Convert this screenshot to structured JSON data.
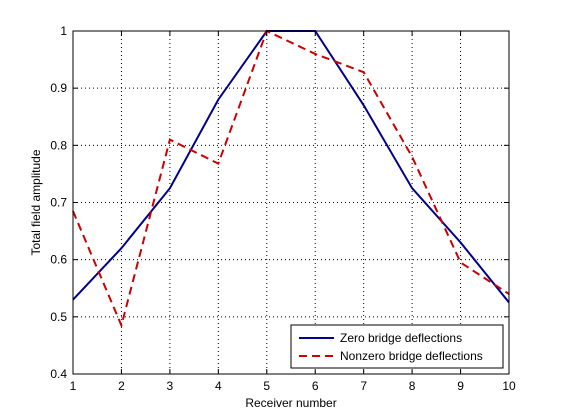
{
  "chart_data": {
    "type": "line",
    "title": "",
    "xlabel": "Receiver number",
    "ylabel": "Total field amplitude",
    "xlim": [
      1,
      10
    ],
    "ylim": [
      0.4,
      1
    ],
    "xticks": [
      1,
      2,
      3,
      4,
      5,
      6,
      7,
      8,
      9,
      10
    ],
    "yticks": [
      0.4,
      0.5,
      0.6,
      0.7,
      0.8,
      0.9,
      1
    ],
    "grid": true,
    "legend_position": "bottom-right",
    "x": [
      1,
      2,
      3,
      4,
      5,
      6,
      7,
      8,
      9,
      10
    ],
    "series": [
      {
        "name": "Zero bridge deflections",
        "color": "#00008b",
        "style": "solid",
        "values": [
          0.53,
          0.62,
          0.725,
          0.88,
          1.0,
          1.0,
          0.87,
          0.725,
          0.63,
          0.525
        ]
      },
      {
        "name": "Nonzero bridge deflections",
        "color": "#cc0000",
        "style": "dashed",
        "values": [
          0.685,
          0.485,
          0.81,
          0.768,
          1.0,
          0.96,
          0.928,
          0.78,
          0.595,
          0.54
        ]
      }
    ]
  }
}
